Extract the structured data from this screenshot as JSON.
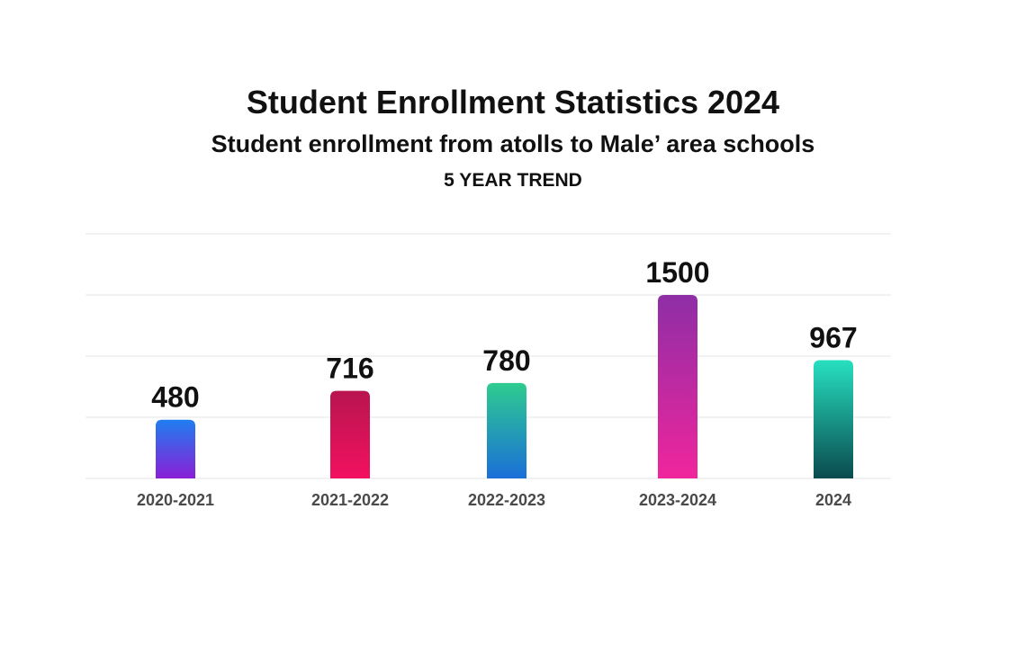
{
  "chart_data": {
    "type": "bar",
    "title": "Student Enrollment Statistics 2024",
    "subtitle": "Student enrollment from atolls to Male’ area schools",
    "trend_label": "5 YEAR TREND",
    "categories": [
      "2020-2021",
      "2021-2022",
      "2022-2023",
      "2023-2024",
      "2024"
    ],
    "values": [
      480,
      716,
      780,
      1500,
      967
    ],
    "data_labels": [
      "480",
      "716",
      "780",
      "1500",
      "967"
    ],
    "ylim": [
      0,
      2000
    ],
    "grid": true,
    "legend": "none",
    "bar_gradients": [
      {
        "top": "#1f7ef0",
        "bottom": "#8a1fd6"
      },
      {
        "top": "#b8154f",
        "bottom": "#f2105f"
      },
      {
        "top": "#2ecc8f",
        "bottom": "#1a6fd8"
      },
      {
        "top": "#8e2ea6",
        "bottom": "#f0259c"
      },
      {
        "top": "#27e0c0",
        "bottom": "#0a4a4e"
      }
    ]
  }
}
